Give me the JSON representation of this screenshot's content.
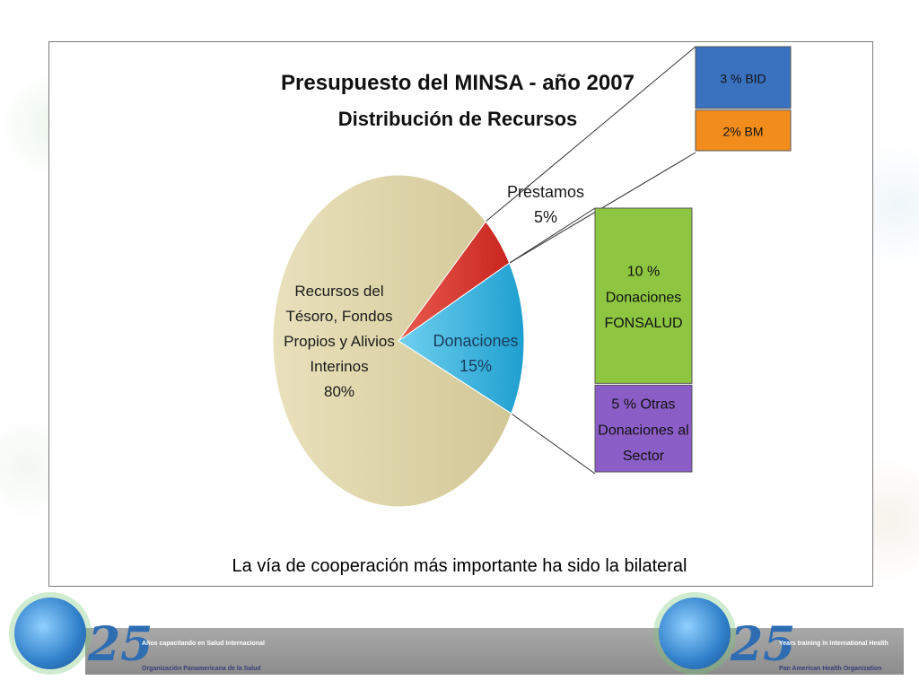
{
  "chart_data": {
    "type": "pie",
    "title": "Presupuesto del MINSA -  año 2007",
    "subtitle": "Distribución de Recursos",
    "slices": [
      {
        "label": [
          "Recursos del",
          "Tésoro, Fondos",
          "Propios y Alivios",
          "Interinos",
          "80%"
        ],
        "value": 80,
        "color": "#ddd3a6"
      },
      {
        "label": [
          "Donaciones",
          "15%"
        ],
        "value": 15,
        "color": "#3cb6e0"
      },
      {
        "label": [
          "Préstamos",
          "5%"
        ],
        "value": 5,
        "color": "#dd3b33"
      }
    ],
    "breakdown_bars": [
      {
        "parent": "Préstamos",
        "segments": [
          {
            "label": [
              "3 % BID"
            ],
            "value": 3,
            "color": "#3a72c0"
          },
          {
            "label": [
              "2% BM"
            ],
            "value": 2,
            "color": "#f28d1d"
          }
        ]
      },
      {
        "parent": "Donaciones",
        "segments": [
          {
            "label": [
              "10 %",
              "Donaciones",
              "FONSALUD"
            ],
            "value": 10,
            "color": "#8ec641"
          },
          {
            "label": [
              "5 % Otras",
              "Donaciones al",
              "Sector"
            ],
            "value": 5,
            "color": "#8b5ec7"
          }
        ]
      }
    ]
  },
  "caption": "La vía de cooperación más importante ha  sido la bilateral",
  "footer": {
    "left": {
      "number": "25",
      "line1": "Años capacitando en Salud Internacional",
      "line2": "Organización Panamericana de la Salud"
    },
    "right": {
      "number": "25",
      "line1": "Years training in International Health",
      "line2": "Pan American Health Organization"
    }
  }
}
